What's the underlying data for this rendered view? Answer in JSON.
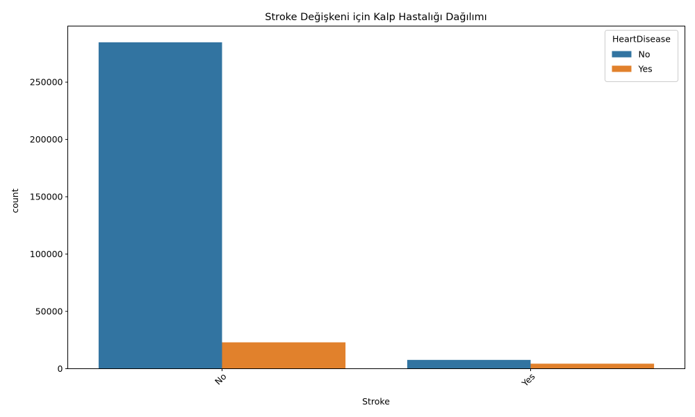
{
  "chart_data": {
    "type": "bar",
    "title": "Stroke Değişkeni için Kalp Hastalığı Dağılımı",
    "xlabel": "Stroke",
    "ylabel": "count",
    "categories": [
      "No",
      "Yes"
    ],
    "series": [
      {
        "name": "No",
        "values": [
          284742,
          7680
        ],
        "color": "#3274a1"
      },
      {
        "name": "Yes",
        "values": [
          22995,
          4378
        ],
        "color": "#e1812c"
      }
    ],
    "yticks": [
      0,
      50000,
      100000,
      150000,
      200000,
      250000
    ],
    "ylim": [
      0,
      298900
    ],
    "grid": false,
    "legend": {
      "title": "HeartDisease",
      "placement": "top-right"
    },
    "xtick_rotation": 45
  }
}
